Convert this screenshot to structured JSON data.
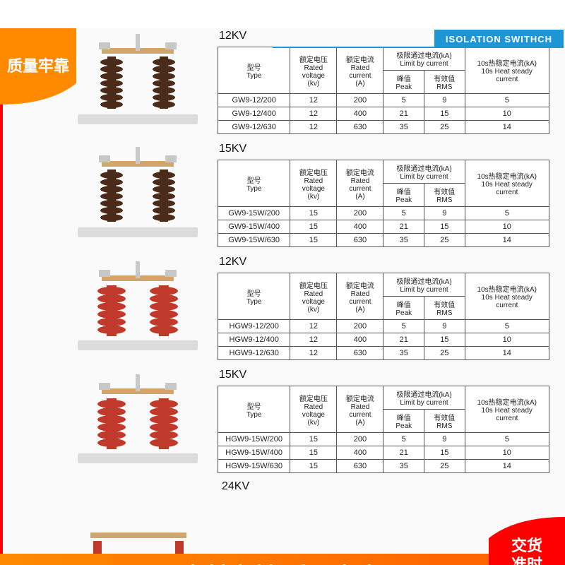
{
  "header": {
    "title": "ISOLATION SWITHCH"
  },
  "badges": {
    "topLeft": {
      "line1": "质量牢靠",
      "bg": "#ff8a00"
    },
    "bottomRight": {
      "line1": "交货",
      "line2": "准时",
      "bg": "#ff0000"
    }
  },
  "footer": {
    "text": "真材实料 质量为本"
  },
  "tables": {
    "headers": {
      "type_cn": "型号",
      "type_en": "Type",
      "volt_cn": "额定电压",
      "volt_en1": "Rated",
      "volt_en2": "voltage",
      "volt_unit": "(kv)",
      "curr_cn": "额定电流",
      "curr_en1": "Rated",
      "curr_en2": "current",
      "curr_unit": "(A)",
      "limit_cn": "极限通过电流(kA)",
      "limit_en": "Limit by current",
      "peak_cn": "峰值",
      "peak_en": "Peak",
      "rms_cn": "有效值",
      "rms_en": "RMS",
      "heat_cn": "10s热稳定电流(kA)",
      "heat_en1": "10s Heat steady",
      "heat_en2": "current"
    }
  },
  "sections": [
    {
      "voltage_label": "12KV",
      "style": "ceramic-brown",
      "rows": [
        {
          "type": "GW9-12/200",
          "kv": "12",
          "a": "200",
          "peak": "5",
          "rms": "9",
          "heat": "5"
        },
        {
          "type": "GW9-12/400",
          "kv": "12",
          "a": "400",
          "peak": "21",
          "rms": "15",
          "heat": "10"
        },
        {
          "type": "GW9-12/630",
          "kv": "12",
          "a": "630",
          "peak": "35",
          "rms": "25",
          "heat": "14"
        }
      ]
    },
    {
      "voltage_label": "15KV",
      "style": "ceramic-brown",
      "rows": [
        {
          "type": "GW9-15W/200",
          "kv": "15",
          "a": "200",
          "peak": "5",
          "rms": "9",
          "heat": "5"
        },
        {
          "type": "GW9-15W/400",
          "kv": "15",
          "a": "400",
          "peak": "21",
          "rms": "15",
          "heat": "10"
        },
        {
          "type": "GW9-15W/630",
          "kv": "15",
          "a": "630",
          "peak": "35",
          "rms": "25",
          "heat": "14"
        }
      ]
    },
    {
      "voltage_label": "12KV",
      "style": "polymer-red",
      "rows": [
        {
          "type": "HGW9-12/200",
          "kv": "12",
          "a": "200",
          "peak": "5",
          "rms": "9",
          "heat": "5"
        },
        {
          "type": "HGW9-12/400",
          "kv": "12",
          "a": "400",
          "peak": "21",
          "rms": "15",
          "heat": "10"
        },
        {
          "type": "HGW9-12/630",
          "kv": "12",
          "a": "630",
          "peak": "35",
          "rms": "25",
          "heat": "14"
        }
      ]
    },
    {
      "voltage_label": "15KV",
      "style": "polymer-red",
      "rows": [
        {
          "type": "HGW9-15W/200",
          "kv": "15",
          "a": "200",
          "peak": "5",
          "rms": "9",
          "heat": "5"
        },
        {
          "type": "HGW9-15W/400",
          "kv": "15",
          "a": "400",
          "peak": "21",
          "rms": "15",
          "heat": "10"
        },
        {
          "type": "HGW9-15W/630",
          "kv": "15",
          "a": "630",
          "peak": "35",
          "rms": "25",
          "heat": "14"
        }
      ]
    }
  ],
  "cutoff": {
    "voltage_label": "24KV"
  },
  "colors": {
    "ceramic": "#4a2a18",
    "polymer": "#c0392b",
    "metal": "#c8c8c8",
    "base": "#dcdcdc",
    "copper": "#d2a56d"
  }
}
